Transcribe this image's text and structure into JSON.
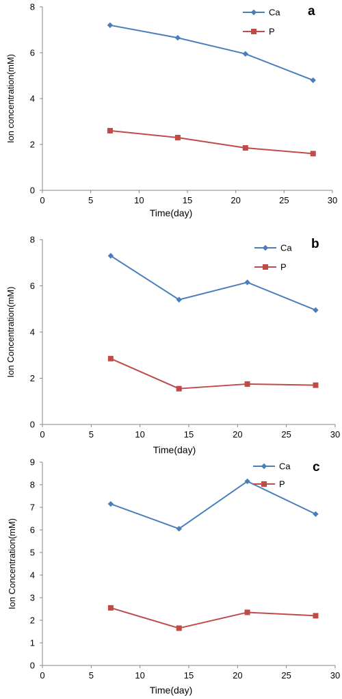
{
  "chart_data": [
    {
      "type": "line",
      "panel_label": "a",
      "xlabel": "Time(day)",
      "ylabel": "Ion concentration(mM)",
      "xlim": [
        0,
        30
      ],
      "ylim": [
        0,
        8
      ],
      "xticks": [
        "0",
        "5",
        "10",
        "15",
        "20",
        "25",
        "30"
      ],
      "yticks": [
        "0",
        "2",
        "4",
        "6",
        "8"
      ],
      "grid": false,
      "legend_position": "top-right",
      "series": [
        {
          "name": "Ca",
          "color": "#4a7ebb",
          "marker": "diamond",
          "x": [
            7,
            14,
            21,
            28
          ],
          "y": [
            7.2,
            6.65,
            5.95,
            4.8
          ]
        },
        {
          "name": "P",
          "color": "#be4b48",
          "marker": "square",
          "x": [
            7,
            14,
            21,
            28
          ],
          "y": [
            2.6,
            2.3,
            1.85,
            1.6
          ]
        }
      ]
    },
    {
      "type": "line",
      "panel_label": "b",
      "xlabel": "Time(day)",
      "ylabel": "Ion Concentration(mM)",
      "xlim": [
        0,
        30
      ],
      "ylim": [
        0,
        8
      ],
      "xticks": [
        "0",
        "5",
        "10",
        "15",
        "20",
        "25",
        "30"
      ],
      "yticks": [
        "0",
        "2",
        "4",
        "6",
        "8"
      ],
      "grid": false,
      "legend_position": "top-right",
      "series": [
        {
          "name": "Ca",
          "color": "#4a7ebb",
          "marker": "diamond",
          "x": [
            7,
            14,
            21,
            28
          ],
          "y": [
            7.3,
            5.4,
            6.15,
            4.95
          ]
        },
        {
          "name": "P",
          "color": "#be4b48",
          "marker": "square",
          "x": [
            7,
            14,
            21,
            28
          ],
          "y": [
            2.85,
            1.55,
            1.75,
            1.7
          ]
        }
      ]
    },
    {
      "type": "line",
      "panel_label": "c",
      "xlabel": "Time(day)",
      "ylabel": "Ion Concentration(mM)",
      "xlim": [
        0,
        30
      ],
      "ylim": [
        0,
        9
      ],
      "xticks": [
        "0",
        "5",
        "10",
        "15",
        "20",
        "25",
        "30"
      ],
      "yticks": [
        "0",
        "1",
        "2",
        "3",
        "4",
        "5",
        "6",
        "7",
        "8",
        "9"
      ],
      "grid": false,
      "legend_position": "top-right",
      "series": [
        {
          "name": "Ca",
          "color": "#4a7ebb",
          "marker": "diamond",
          "x": [
            7,
            14,
            21,
            28
          ],
          "y": [
            7.15,
            6.05,
            8.15,
            6.7
          ]
        },
        {
          "name": "P",
          "color": "#be4b48",
          "marker": "square",
          "x": [
            7,
            14,
            21,
            28
          ],
          "y": [
            2.55,
            1.65,
            2.35,
            2.2
          ]
        }
      ]
    }
  ]
}
